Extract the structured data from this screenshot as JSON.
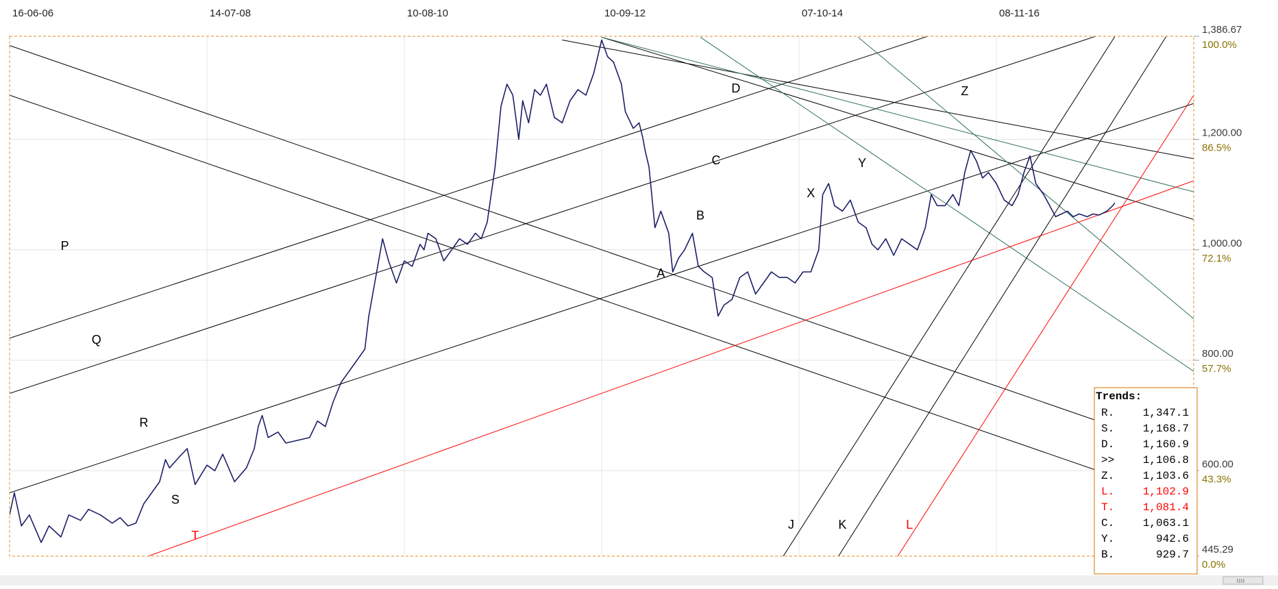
{
  "chart_data": {
    "type": "line",
    "title": "",
    "xlabel": "",
    "ylabel": "",
    "x_ticks": [
      "16-06-06",
      "14-07-08",
      "10-08-10",
      "10-09-12",
      "07-10-14",
      "08-11-16"
    ],
    "y_price_labels": [
      "1,386.67",
      "1,200.00",
      "1,000.00",
      "800.00",
      "600.00",
      "445.29"
    ],
    "y_percent_labels": [
      "100.0%",
      "86.5%",
      "72.1%",
      "57.7%",
      "43.3%",
      "0.0%"
    ],
    "ylim": [
      445.29,
      1386.67
    ],
    "grid": true,
    "series": [
      {
        "color": "#1a1f66",
        "points": [
          [
            0.0,
            520
          ],
          [
            0.12,
            560
          ],
          [
            0.3,
            500
          ],
          [
            0.5,
            520
          ],
          [
            0.8,
            470
          ],
          [
            1.0,
            500
          ],
          [
            1.3,
            480
          ],
          [
            1.5,
            520
          ],
          [
            1.8,
            510
          ],
          [
            2.0,
            530
          ],
          [
            2.3,
            520
          ],
          [
            2.6,
            505
          ],
          [
            2.8,
            515
          ],
          [
            3.0,
            500
          ],
          [
            3.2,
            505
          ],
          [
            3.4,
            540
          ],
          [
            3.6,
            560
          ],
          [
            3.8,
            580
          ],
          [
            3.95,
            620
          ],
          [
            4.05,
            605
          ],
          [
            4.3,
            625
          ],
          [
            4.5,
            640
          ],
          [
            4.7,
            575
          ],
          [
            5.0,
            610
          ],
          [
            5.2,
            600
          ],
          [
            5.4,
            630
          ],
          [
            5.7,
            580
          ],
          [
            6.0,
            605
          ],
          [
            6.2,
            640
          ],
          [
            6.3,
            680
          ],
          [
            6.4,
            700
          ],
          [
            6.55,
            660
          ],
          [
            6.8,
            670
          ],
          [
            7.0,
            650
          ],
          [
            7.3,
            655
          ],
          [
            7.6,
            660
          ],
          [
            7.8,
            690
          ],
          [
            8.0,
            680
          ],
          [
            8.2,
            725
          ],
          [
            8.4,
            760
          ],
          [
            8.6,
            780
          ],
          [
            8.8,
            800
          ],
          [
            9.0,
            820
          ],
          [
            9.1,
            880
          ],
          [
            9.3,
            960
          ],
          [
            9.45,
            1020
          ],
          [
            9.6,
            980
          ],
          [
            9.8,
            940
          ],
          [
            10.0,
            980
          ],
          [
            10.2,
            970
          ],
          [
            10.4,
            1010
          ],
          [
            10.5,
            1000
          ],
          [
            10.6,
            1030
          ],
          [
            10.8,
            1020
          ],
          [
            11.0,
            980
          ],
          [
            11.2,
            1000
          ],
          [
            11.4,
            1020
          ],
          [
            11.6,
            1010
          ],
          [
            11.8,
            1030
          ],
          [
            11.95,
            1020
          ],
          [
            12.1,
            1050
          ],
          [
            12.3,
            1150
          ],
          [
            12.45,
            1260
          ],
          [
            12.6,
            1300
          ],
          [
            12.75,
            1280
          ],
          [
            12.9,
            1200
          ],
          [
            13.0,
            1270
          ],
          [
            13.15,
            1230
          ],
          [
            13.3,
            1290
          ],
          [
            13.45,
            1280
          ],
          [
            13.6,
            1300
          ],
          [
            13.8,
            1240
          ],
          [
            14.0,
            1230
          ],
          [
            14.2,
            1270
          ],
          [
            14.4,
            1290
          ],
          [
            14.6,
            1280
          ],
          [
            14.8,
            1320
          ],
          [
            15.0,
            1380
          ],
          [
            15.15,
            1350
          ],
          [
            15.3,
            1340
          ],
          [
            15.5,
            1300
          ],
          [
            15.6,
            1250
          ],
          [
            15.8,
            1220
          ],
          [
            15.95,
            1230
          ],
          [
            16.05,
            1200
          ],
          [
            16.1,
            1180
          ],
          [
            16.2,
            1150
          ],
          [
            16.35,
            1040
          ],
          [
            16.5,
            1070
          ],
          [
            16.7,
            1030
          ],
          [
            16.8,
            960
          ],
          [
            16.95,
            985
          ],
          [
            17.1,
            1000
          ],
          [
            17.3,
            1030
          ],
          [
            17.45,
            970
          ],
          [
            17.6,
            960
          ],
          [
            17.8,
            950
          ],
          [
            17.95,
            880
          ],
          [
            18.1,
            900
          ],
          [
            18.3,
            910
          ],
          [
            18.5,
            950
          ],
          [
            18.7,
            960
          ],
          [
            18.9,
            920
          ],
          [
            19.1,
            940
          ],
          [
            19.3,
            960
          ],
          [
            19.5,
            950
          ],
          [
            19.7,
            950
          ],
          [
            19.9,
            940
          ],
          [
            20.1,
            960
          ],
          [
            20.3,
            960
          ],
          [
            20.5,
            1000
          ],
          [
            20.6,
            1100
          ],
          [
            20.75,
            1120
          ],
          [
            20.9,
            1080
          ],
          [
            21.1,
            1070
          ],
          [
            21.3,
            1090
          ],
          [
            21.5,
            1050
          ],
          [
            21.7,
            1040
          ],
          [
            21.85,
            1010
          ],
          [
            22.0,
            1000
          ],
          [
            22.2,
            1020
          ],
          [
            22.4,
            990
          ],
          [
            22.6,
            1020
          ],
          [
            22.8,
            1010
          ],
          [
            23.0,
            1000
          ],
          [
            23.2,
            1040
          ],
          [
            23.35,
            1100
          ],
          [
            23.5,
            1080
          ],
          [
            23.7,
            1080
          ],
          [
            23.9,
            1100
          ],
          [
            24.05,
            1080
          ],
          [
            24.2,
            1140
          ],
          [
            24.35,
            1180
          ],
          [
            24.5,
            1160
          ],
          [
            24.65,
            1130
          ],
          [
            24.8,
            1140
          ],
          [
            25.0,
            1120
          ],
          [
            25.2,
            1090
          ],
          [
            25.4,
            1080
          ],
          [
            25.55,
            1100
          ],
          [
            25.7,
            1140
          ],
          [
            25.85,
            1170
          ],
          [
            26.0,
            1120
          ],
          [
            26.2,
            1100
          ],
          [
            26.35,
            1080
          ],
          [
            26.5,
            1060
          ],
          [
            26.65,
            1065
          ],
          [
            26.8,
            1070
          ],
          [
            26.95,
            1060
          ],
          [
            27.1,
            1065
          ],
          [
            27.3,
            1060
          ],
          [
            27.45,
            1065
          ],
          [
            27.6,
            1063
          ],
          [
            27.8,
            1070
          ],
          [
            27.95,
            1080
          ],
          [
            28.0,
            1085
          ]
        ]
      }
    ],
    "trend_lines": [
      {
        "label": "R",
        "color": "#000000",
        "points": [
          [
            0.0,
            840
          ],
          [
            30.0,
            1545
          ]
        ]
      },
      {
        "label": "Q",
        "color": "#000000",
        "points": [
          [
            0.0,
            740
          ],
          [
            30.0,
            1445
          ]
        ]
      },
      {
        "label": "S",
        "color": "#000000",
        "points": [
          [
            0.0,
            560
          ],
          [
            30.0,
            1265
          ]
        ]
      },
      {
        "label": "P",
        "color": "#000000",
        "points": [
          [
            0.0,
            1370
          ],
          [
            30.0,
            630
          ]
        ]
      },
      {
        "label": "D",
        "color": "#000000",
        "points": [
          [
            0.0,
            1280
          ],
          [
            30.0,
            540
          ]
        ]
      },
      {
        "label": "C",
        "color": "#000000",
        "points": [
          [
            14.0,
            1380
          ],
          [
            30.0,
            1165
          ]
        ]
      },
      {
        "label": "B",
        "color": "#000000",
        "points": [
          [
            15.0,
            1385
          ],
          [
            30.0,
            1055
          ]
        ]
      },
      {
        "label": "Z",
        "color": "#2f6e5e",
        "points": [
          [
            15.0,
            1385
          ],
          [
            30.0,
            1105
          ]
        ]
      },
      {
        "label": "Y",
        "color": "#2f6e5e",
        "points": [
          [
            17.5,
            1385
          ],
          [
            30.0,
            780
          ]
        ]
      },
      {
        "label": "X",
        "color": "#2f6e5e",
        "points": [
          [
            21.5,
            1385
          ],
          [
            30.0,
            875
          ]
        ]
      },
      {
        "label": "J",
        "color": "#000000",
        "points": [
          [
            19.6,
            445
          ],
          [
            28.0,
            1386
          ]
        ]
      },
      {
        "label": "K",
        "color": "#000000",
        "points": [
          [
            21.0,
            445
          ],
          [
            29.3,
            1386
          ]
        ]
      },
      {
        "label": "T",
        "color": "#ff0000",
        "points": [
          [
            3.5,
            445
          ],
          [
            30.0,
            1125
          ]
        ]
      },
      {
        "label": "L",
        "color": "#ff0000",
        "points": [
          [
            22.5,
            445
          ],
          [
            30.0,
            1280
          ]
        ]
      }
    ],
    "line_labels": [
      {
        "text": "P",
        "x": 1.4,
        "y": 1000,
        "color": "#000000"
      },
      {
        "text": "Q",
        "x": 2.2,
        "y": 830,
        "color": "#000000"
      },
      {
        "text": "R",
        "x": 3.4,
        "y": 680,
        "color": "#000000"
      },
      {
        "text": "S",
        "x": 4.2,
        "y": 540,
        "color": "#000000"
      },
      {
        "text": "T",
        "x": 4.7,
        "y": 475,
        "color": "#ff0000"
      },
      {
        "text": "A",
        "x": 16.5,
        "y": 950,
        "color": "#000000"
      },
      {
        "text": "B",
        "x": 17.5,
        "y": 1055,
        "color": "#000000"
      },
      {
        "text": "C",
        "x": 17.9,
        "y": 1155,
        "color": "#000000"
      },
      {
        "text": "D",
        "x": 18.4,
        "y": 1285,
        "color": "#000000"
      },
      {
        "text": "X",
        "x": 20.3,
        "y": 1095,
        "color": "#000000"
      },
      {
        "text": "Y",
        "x": 21.6,
        "y": 1150,
        "color": "#000000"
      },
      {
        "text": "Z",
        "x": 24.2,
        "y": 1280,
        "color": "#000000"
      },
      {
        "text": "J",
        "x": 19.8,
        "y": 495,
        "color": "#000000"
      },
      {
        "text": "K",
        "x": 21.1,
        "y": 495,
        "color": "#000000"
      },
      {
        "text": "L",
        "x": 22.8,
        "y": 495,
        "color": "#ff0000"
      }
    ],
    "trends": {
      "title": "Trends:",
      "rows": [
        {
          "label": "R.",
          "value": "1,347.1",
          "color": "#000000"
        },
        {
          "label": "S.",
          "value": "1,168.7",
          "color": "#000000"
        },
        {
          "label": "D.",
          "value": "1,160.9",
          "color": "#000000"
        },
        {
          "label": ">>",
          "value": "1,106.8",
          "color": "#000000"
        },
        {
          "label": "Z.",
          "value": "1,103.6",
          "color": "#000000"
        },
        {
          "label": "L.",
          "value": "1,102.9",
          "color": "#ff0000"
        },
        {
          "label": "T.",
          "value": "1,081.4",
          "color": "#ff0000"
        },
        {
          "label": "C.",
          "value": "1,063.1",
          "color": "#000000"
        },
        {
          "label": "Y.",
          "value": "942.6",
          "color": "#000000"
        },
        {
          "label": "B.",
          "value": "929.7",
          "color": "#000000"
        }
      ]
    }
  }
}
